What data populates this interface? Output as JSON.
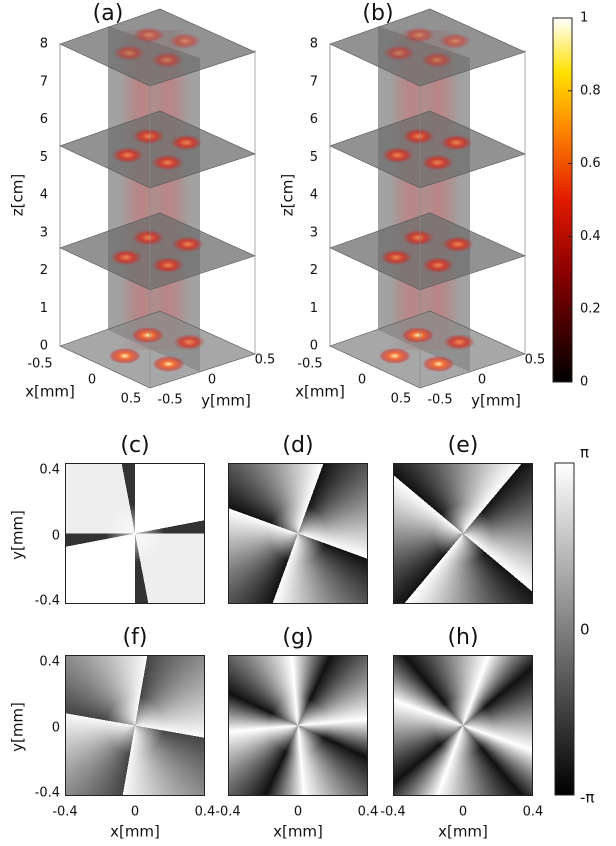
{
  "panels_3d": [
    {
      "label": "(a)",
      "z_label": "z[cm]",
      "z_ticks": [
        0,
        1,
        2,
        3,
        4,
        5,
        6,
        7,
        8
      ],
      "x_label": "x[mm]",
      "x_ticks": [
        -0.5,
        0,
        0.5
      ],
      "y_label": "y[mm]",
      "y_ticks": [
        -0.5,
        0,
        0.5
      ]
    },
    {
      "label": "(b)",
      "z_label": "z[cm]",
      "z_ticks": [
        0,
        1,
        2,
        3,
        4,
        5,
        6,
        7,
        8
      ],
      "x_label": "x[mm]",
      "x_ticks": [
        -0.5,
        0,
        0.5
      ],
      "y_label": "y[mm]",
      "y_ticks": [
        -0.5,
        0,
        0.5
      ]
    }
  ],
  "intensity_colorbar": {
    "ticks": [
      0,
      0.2,
      0.4,
      0.6,
      0.8,
      1
    ]
  },
  "phase_panels": [
    {
      "label": "(c)"
    },
    {
      "label": "(d)"
    },
    {
      "label": "(e)"
    },
    {
      "label": "(f)"
    },
    {
      "label": "(g)"
    },
    {
      "label": "(h)"
    }
  ],
  "phase_axes": {
    "y_label": "y[mm]",
    "y_ticks": [
      -0.4,
      0,
      0.4
    ],
    "x_label": "x[mm]",
    "x_ticks": [
      -0.4,
      0,
      0.4
    ]
  },
  "phase_colorbar": {
    "ticks": [
      "-π",
      "0",
      "π"
    ]
  }
}
